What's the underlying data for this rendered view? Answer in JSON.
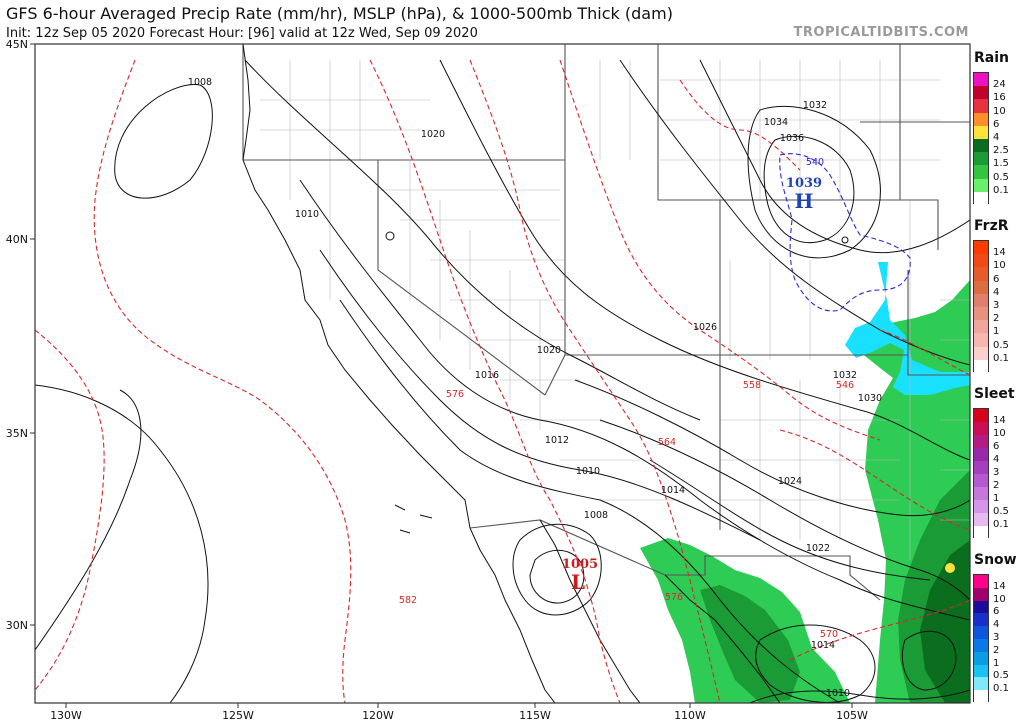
{
  "header": {
    "title": "GFS 6-hour Averaged Precip Rate (mm/hr), MSLP (hPa), & 1000-500mb Thick (dam)",
    "subtitle": "Init: 12z Sep 05 2020   Forecast Hour: [96]   valid at 12z Wed, Sep 09 2020",
    "brand": "TROPICALTIDBITS.COM"
  },
  "map": {
    "lat_labels": [
      "45N",
      "40N",
      "35N",
      "30N"
    ],
    "lon_labels": [
      "130W",
      "125W",
      "120W",
      "115W",
      "110W",
      "105W"
    ],
    "high": {
      "value": "1039",
      "letter": "H"
    },
    "low": {
      "value": "1005",
      "letter": "L"
    },
    "isobars": [
      "1008",
      "1020",
      "1010",
      "1034",
      "1036",
      "1032",
      "1026",
      "1020",
      "1016",
      "1032",
      "1030",
      "1012",
      "1010",
      "1014",
      "1024",
      "1008",
      "1022",
      "1014",
      "1010"
    ],
    "thickness": [
      "540",
      "576",
      "558",
      "546",
      "564",
      "576",
      "582",
      "570"
    ],
    "colors": {
      "isobar": "#111111",
      "thickness_warm": "#d42a2a",
      "thickness_cold": "#2a2ad4",
      "border": "#555555",
      "county": "#b8b8b8",
      "coast": "#111111",
      "rain": "#2ecc55",
      "rain_dark": "#1e9e3e",
      "snow": "#1ae0ff",
      "high": "#1d43b5",
      "low": "#c91d1d"
    }
  },
  "legends": [
    {
      "name": "Rain",
      "labels": [
        "24",
        "16",
        "10",
        "6",
        "4",
        "2.5",
        "1.5",
        "0.5",
        "0.1"
      ],
      "colors": [
        "#f00fc2",
        "#c0002d",
        "#e6313f",
        "#ff8d2c",
        "#ffe23c",
        "#0b6e1e",
        "#1a9b35",
        "#33c53f",
        "#6aef6a",
        "#ffffff"
      ]
    },
    {
      "name": "FrzR",
      "labels": [
        "14",
        "10",
        "6",
        "4",
        "3",
        "2",
        "1",
        "0.5",
        "0.1"
      ],
      "colors": [
        "#ff3a00",
        "#f24a16",
        "#e65a2c",
        "#da6e42",
        "#e07f6a",
        "#e7927f",
        "#efa59a",
        "#f4b8b0",
        "#fad0ce",
        "#ffffff"
      ]
    },
    {
      "name": "Sleet",
      "labels": [
        "14",
        "10",
        "6",
        "4",
        "3",
        "2",
        "1",
        "0.5",
        "0.1"
      ],
      "colors": [
        "#d6001c",
        "#c90e55",
        "#b31b85",
        "#9a28a8",
        "#a53fc0",
        "#b459cf",
        "#c577dc",
        "#d595e8",
        "#e6b9f1",
        "#ffffff"
      ]
    },
    {
      "name": "Snow",
      "labels": [
        "14",
        "10",
        "6",
        "4",
        "3",
        "2",
        "1",
        "0.5",
        "0.1"
      ],
      "colors": [
        "#ff008a",
        "#a00069",
        "#1b0d9a",
        "#1a2fc9",
        "#0d55de",
        "#0a79e6",
        "#0a9de6",
        "#18c3f0",
        "#7fe8fa",
        "#ffffff"
      ]
    }
  ]
}
